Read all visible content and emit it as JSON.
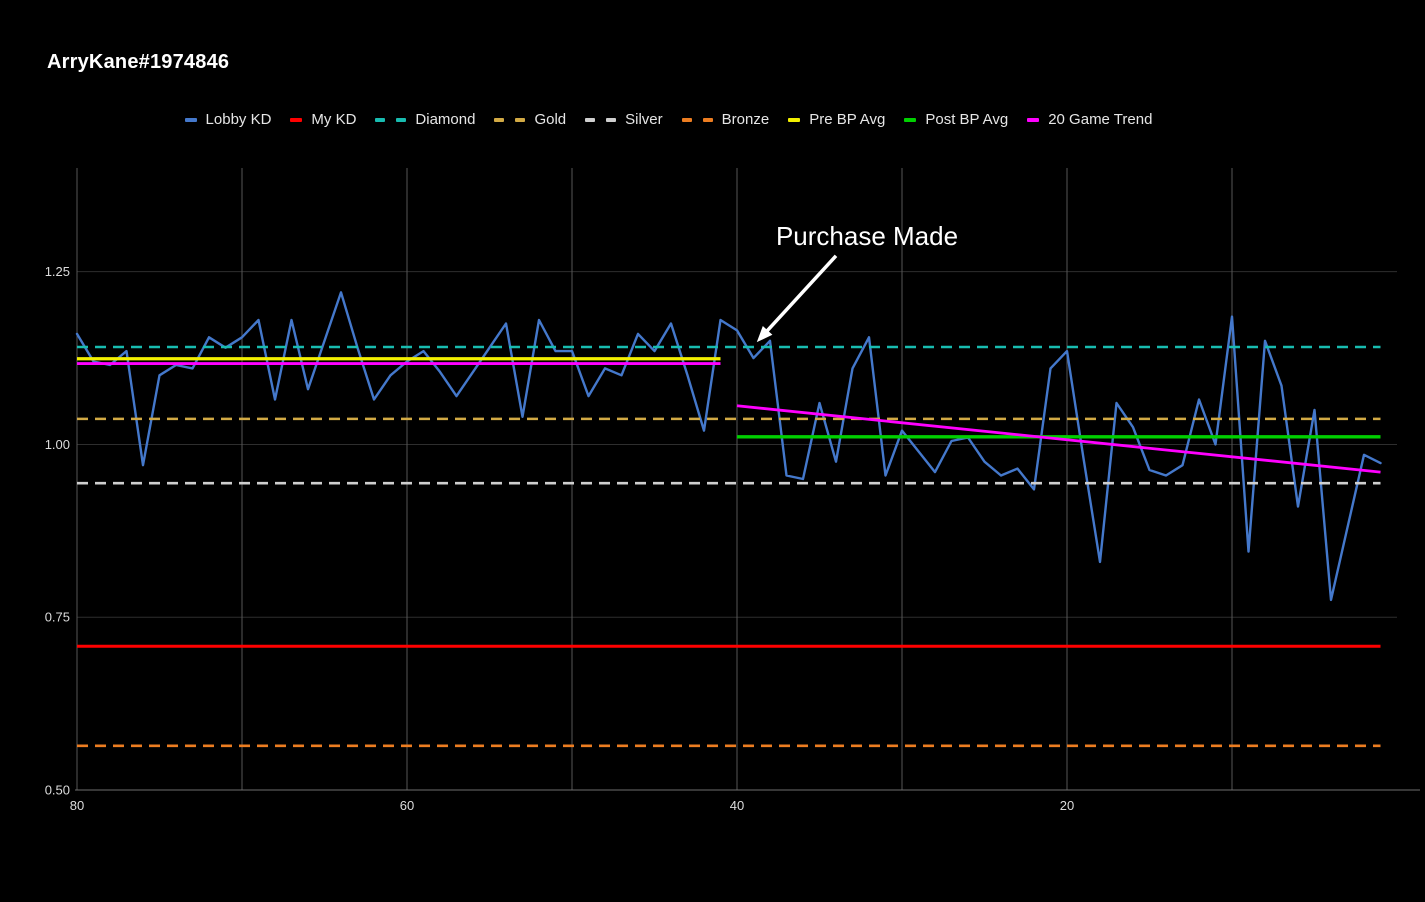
{
  "title": "ArryKane#1974846",
  "legend": {
    "items": [
      {
        "label": "Lobby KD",
        "color": "#4478cb",
        "dashed": false
      },
      {
        "label": "My KD",
        "color": "#ff0000",
        "dashed": false
      },
      {
        "label": "Diamond",
        "color": "#18bcb0",
        "dashed": true
      },
      {
        "label": "Gold",
        "color": "#d2aa45",
        "dashed": true
      },
      {
        "label": "Silver",
        "color": "#cfcfcf",
        "dashed": true
      },
      {
        "label": "Bronze",
        "color": "#ec7d21",
        "dashed": true
      },
      {
        "label": "Pre BP Avg",
        "color": "#f2ef00",
        "dashed": false
      },
      {
        "label": "Post BP Avg",
        "color": "#00d000",
        "dashed": false
      },
      {
        "label": "20 Game Trend",
        "color": "#ff00ff",
        "dashed": false
      }
    ]
  },
  "chart_data": {
    "type": "line",
    "title": "ArryKane#1974846",
    "xlabel": "",
    "ylabel": "",
    "grid": true,
    "background": "#000000",
    "x_axis": {
      "ticks": [
        80,
        60,
        40,
        20
      ],
      "tick_labels": [
        "80",
        "60",
        "40",
        "20"
      ],
      "gridlines": [
        80,
        70,
        60,
        50,
        40,
        30,
        20,
        10
      ],
      "range": [
        80,
        0
      ],
      "reversed": true,
      "unit": "games ago"
    },
    "y_axis": {
      "ticks": [
        1.25,
        1.0,
        0.75,
        0.5
      ],
      "tick_labels": [
        "1.25",
        "1.00",
        "0.75",
        "0.50"
      ],
      "range": [
        0.5,
        1.4
      ]
    },
    "series": {
      "name": "Lobby KD",
      "color": "#4478cb",
      "x_order": "games_ago_descending",
      "games_ago_range": [
        80,
        1
      ],
      "values": [
        1.16,
        1.12,
        1.115,
        1.135,
        0.97,
        1.1,
        1.115,
        1.11,
        1.155,
        1.14,
        1.155,
        1.18,
        1.065,
        1.18,
        1.08,
        1.15,
        1.22,
        1.14,
        1.065,
        1.1,
        1.12,
        1.135,
        1.105,
        1.07,
        1.105,
        1.14,
        1.175,
        1.04,
        1.18,
        1.135,
        1.135,
        1.07,
        1.11,
        1.1,
        1.16,
        1.135,
        1.175,
        1.1,
        1.02,
        1.18,
        1.165,
        1.125,
        1.15,
        0.955,
        0.95,
        1.06,
        0.975,
        1.11,
        1.155,
        0.955,
        1.02,
        0.99,
        0.96,
        1.005,
        1.01,
        0.975,
        0.955,
        0.965,
        0.935,
        1.11,
        1.135,
        0.98,
        0.83,
        1.06,
        1.025,
        0.963,
        0.955,
        0.97,
        1.065,
        1.0,
        1.185,
        0.845,
        1.15,
        1.085,
        0.91,
        1.05,
        0.775,
        0.88,
        0.985,
        0.973
      ]
    },
    "levels": [
      {
        "name": "Diamond",
        "value": 1.141,
        "color": "#18bcb0",
        "dashed": true,
        "width": 2.6,
        "span_games": [
          80,
          1
        ]
      },
      {
        "name": "Gold",
        "value": 1.037,
        "color": "#d2aa45",
        "dashed": true,
        "width": 2.6,
        "span_games": [
          80,
          1
        ]
      },
      {
        "name": "Silver",
        "value": 0.944,
        "color": "#cfcfcf",
        "dashed": true,
        "width": 2.6,
        "span_games": [
          80,
          1
        ]
      },
      {
        "name": "Bronze",
        "value": 0.564,
        "color": "#ec7d21",
        "dashed": true,
        "width": 2.6,
        "span_games": [
          80,
          1
        ]
      },
      {
        "name": "My KD",
        "value": 0.708,
        "color": "#ff0000",
        "dashed": false,
        "width": 3.0,
        "span_games": [
          80,
          1
        ]
      },
      {
        "name": "Pre BP Avg",
        "value": 1.124,
        "color": "#f2ef00",
        "dashed": false,
        "width": 3.2,
        "span_games": [
          80,
          41
        ]
      },
      {
        "name": "Post BP Avg",
        "value": 1.011,
        "color": "#00d000",
        "dashed": false,
        "width": 3.4,
        "span_games": [
          40,
          1
        ]
      }
    ],
    "trend": {
      "name": "20 Game Trend",
      "color": "#ff00ff",
      "width": 2.8,
      "segments": [
        {
          "from_game": 80,
          "from_value": 1.117,
          "to_game": 41,
          "to_value": 1.117
        },
        {
          "from_game": 40,
          "from_value": 1.056,
          "to_game": 1,
          "to_value": 0.96
        }
      ]
    },
    "annotation": {
      "text": "Purchase Made",
      "arrow_from": {
        "game": 34.0,
        "value": 1.273
      },
      "arrow_to": {
        "game": 38.8,
        "value": 1.148
      }
    }
  }
}
